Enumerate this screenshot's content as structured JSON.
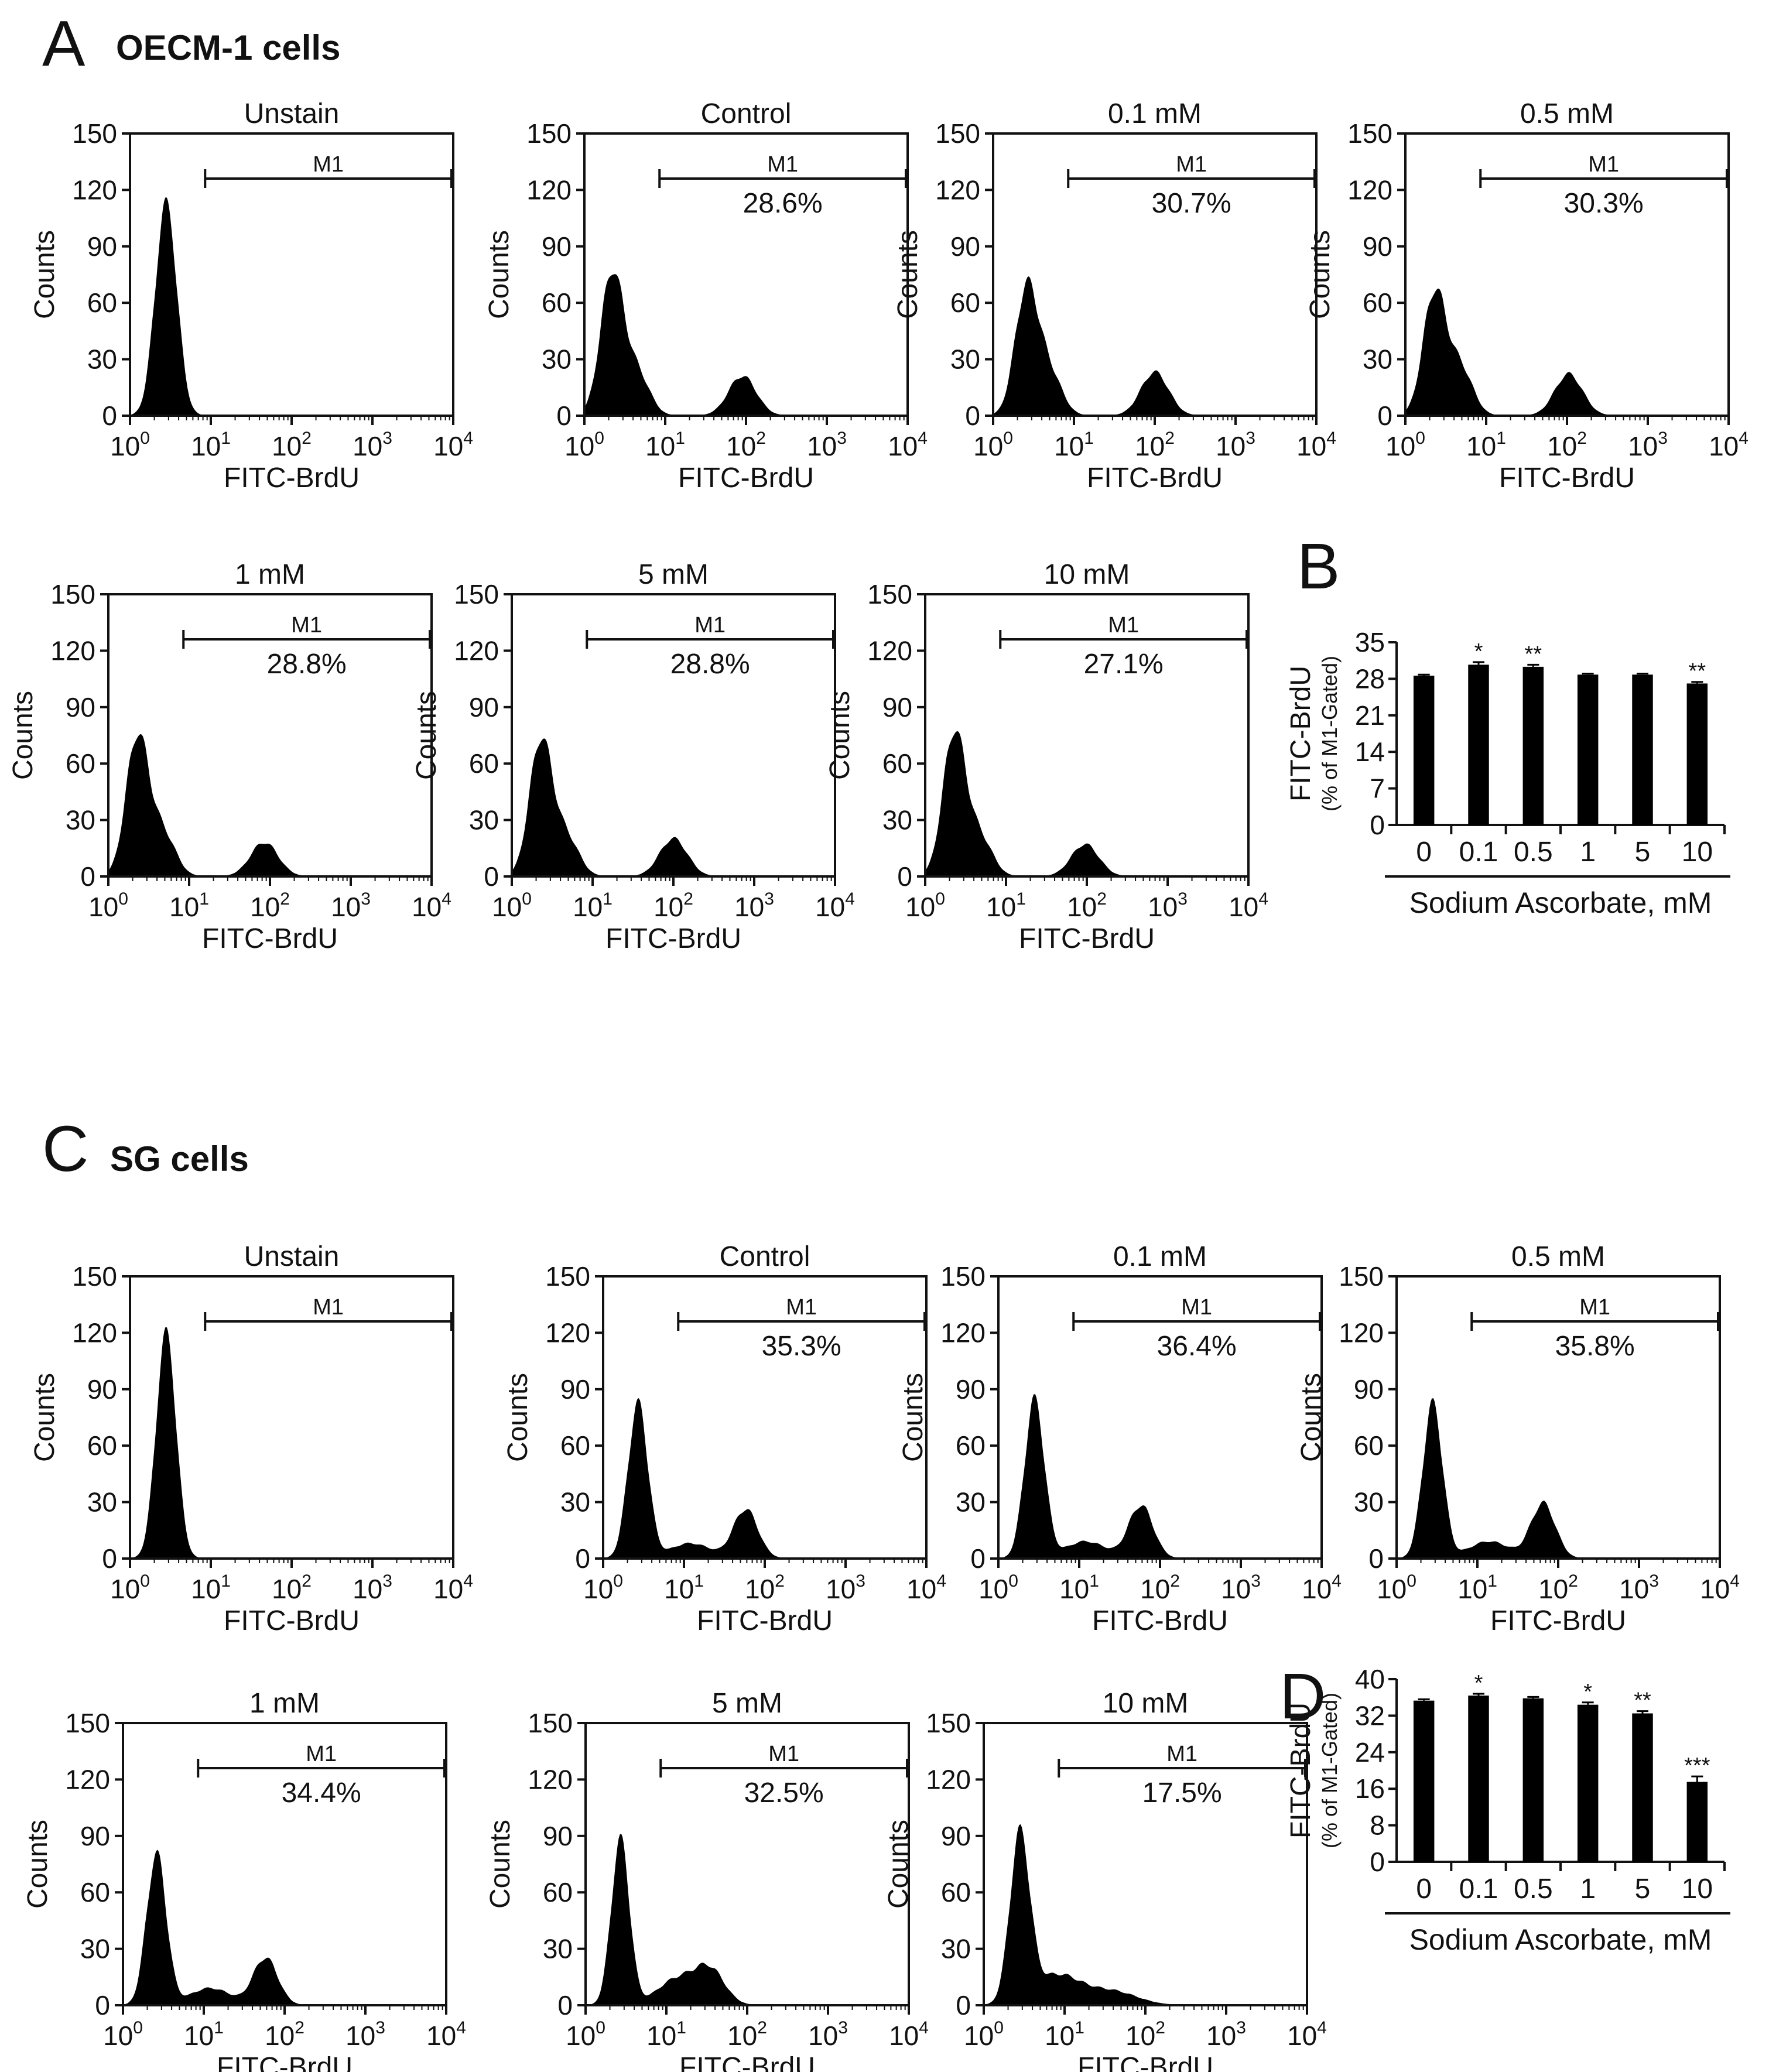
{
  "figure": {
    "panel_A": {
      "letter": "A",
      "title": "OECM-1 cells"
    },
    "panel_B": {
      "letter": "B"
    },
    "panel_C": {
      "letter": "C",
      "title": "SG cells"
    },
    "panel_D": {
      "letter": "D"
    }
  },
  "chart_data": [
    {
      "type": "histogram",
      "panel": "A",
      "title": "Unstain",
      "xlabel": "FITC-BrdU",
      "ylabel": "Counts",
      "xscale": "log",
      "xlim": [
        1,
        10000
      ],
      "ylim": [
        0,
        150
      ],
      "yticks": [
        "0",
        "30",
        "60",
        "90",
        "120",
        "150"
      ],
      "xticks": [
        {
          "base": "10",
          "exp": "0"
        },
        {
          "base": "10",
          "exp": "1"
        },
        {
          "base": "10",
          "exp": "2"
        },
        {
          "base": "10",
          "exp": "3"
        },
        {
          "base": "10",
          "exp": "4"
        }
      ],
      "gate": {
        "label": "M1",
        "from": 8.5,
        "to": 10000,
        "percent": ""
      },
      "peaks": [
        {
          "center": 2.8,
          "height": 113,
          "width": 0.13
        }
      ]
    },
    {
      "type": "histogram",
      "panel": "A",
      "title": "Control",
      "xlabel": "FITC-BrdU",
      "ylabel": "Counts",
      "xscale": "log",
      "xlim": [
        1,
        10000
      ],
      "ylim": [
        0,
        150
      ],
      "yticks": [
        "0",
        "30",
        "60",
        "90",
        "120",
        "150"
      ],
      "xticks": [
        {
          "base": "10",
          "exp": "0"
        },
        {
          "base": "10",
          "exp": "1"
        },
        {
          "base": "10",
          "exp": "2"
        },
        {
          "base": "10",
          "exp": "3"
        },
        {
          "base": "10",
          "exp": "4"
        }
      ],
      "gate": {
        "label": "M1",
        "from": 8.5,
        "to": 10000,
        "percent": "28.6%"
      },
      "peaks": [
        {
          "center": 2.2,
          "height": 75,
          "width": 0.14
        },
        {
          "center": 4.5,
          "height": 22,
          "width": 0.15
        },
        {
          "center": 90,
          "height": 21,
          "width": 0.17
        }
      ]
    },
    {
      "type": "histogram",
      "panel": "A",
      "title": "0.1 mM",
      "xlabel": "FITC-BrdU",
      "ylabel": "Counts",
      "xscale": "log",
      "xlim": [
        1,
        10000
      ],
      "ylim": [
        0,
        150
      ],
      "yticks": [
        "0",
        "30",
        "60",
        "90",
        "120",
        "150"
      ],
      "xticks": [
        {
          "base": "10",
          "exp": "0"
        },
        {
          "base": "10",
          "exp": "1"
        },
        {
          "base": "10",
          "exp": "2"
        },
        {
          "base": "10",
          "exp": "3"
        },
        {
          "base": "10",
          "exp": "4"
        }
      ],
      "gate": {
        "label": "M1",
        "from": 8.5,
        "to": 10000,
        "percent": "30.7%"
      },
      "peaks": [
        {
          "center": 2.6,
          "height": 67,
          "width": 0.14
        },
        {
          "center": 5.0,
          "height": 22,
          "width": 0.15
        },
        {
          "center": 100,
          "height": 23,
          "width": 0.17
        }
      ]
    },
    {
      "type": "histogram",
      "panel": "A",
      "title": "0.5 mM",
      "xlabel": "FITC-BrdU",
      "ylabel": "Counts",
      "xscale": "log",
      "xlim": [
        1,
        10000
      ],
      "ylim": [
        0,
        150
      ],
      "yticks": [
        "0",
        "30",
        "60",
        "90",
        "120",
        "150"
      ],
      "xticks": [
        {
          "base": "10",
          "exp": "0"
        },
        {
          "base": "10",
          "exp": "1"
        },
        {
          "base": "10",
          "exp": "2"
        },
        {
          "base": "10",
          "exp": "3"
        },
        {
          "base": "10",
          "exp": "4"
        }
      ],
      "gate": {
        "label": "M1",
        "from": 8.5,
        "to": 10000,
        "percent": "30.3%"
      },
      "peaks": [
        {
          "center": 2.3,
          "height": 65,
          "width": 0.14
        },
        {
          "center": 4.8,
          "height": 25,
          "width": 0.15
        },
        {
          "center": 105,
          "height": 22,
          "width": 0.17
        }
      ]
    },
    {
      "type": "histogram",
      "panel": "A",
      "title": "1 mM",
      "xlabel": "FITC-BrdU",
      "ylabel": "Counts",
      "xscale": "log",
      "xlim": [
        1,
        10000
      ],
      "ylim": [
        0,
        150
      ],
      "yticks": [
        "0",
        "30",
        "60",
        "90",
        "120",
        "150"
      ],
      "xticks": [
        {
          "base": "10",
          "exp": "0"
        },
        {
          "base": "10",
          "exp": "1"
        },
        {
          "base": "10",
          "exp": "2"
        },
        {
          "base": "10",
          "exp": "3"
        },
        {
          "base": "10",
          "exp": "4"
        }
      ],
      "gate": {
        "label": "M1",
        "from": 8.5,
        "to": 10000,
        "percent": "28.8%"
      },
      "peaks": [
        {
          "center": 2.3,
          "height": 74,
          "width": 0.14
        },
        {
          "center": 4.8,
          "height": 22,
          "width": 0.15
        },
        {
          "center": 85,
          "height": 18,
          "width": 0.17
        }
      ]
    },
    {
      "type": "histogram",
      "panel": "A",
      "title": "5 mM",
      "xlabel": "FITC-BrdU",
      "ylabel": "Counts",
      "xscale": "log",
      "xlim": [
        1,
        10000
      ],
      "ylim": [
        0,
        150
      ],
      "yticks": [
        "0",
        "30",
        "60",
        "90",
        "120",
        "150"
      ],
      "xticks": [
        {
          "base": "10",
          "exp": "0"
        },
        {
          "base": "10",
          "exp": "1"
        },
        {
          "base": "10",
          "exp": "2"
        },
        {
          "base": "10",
          "exp": "3"
        },
        {
          "base": "10",
          "exp": "4"
        }
      ],
      "gate": {
        "label": "M1",
        "from": 8.5,
        "to": 10000,
        "percent": "28.8%"
      },
      "peaks": [
        {
          "center": 2.3,
          "height": 72,
          "width": 0.14
        },
        {
          "center": 4.8,
          "height": 20,
          "width": 0.15
        },
        {
          "center": 100,
          "height": 20,
          "width": 0.17
        }
      ]
    },
    {
      "type": "histogram",
      "panel": "A",
      "title": "10 mM",
      "xlabel": "FITC-BrdU",
      "ylabel": "Counts",
      "xscale": "log",
      "xlim": [
        1,
        10000
      ],
      "ylim": [
        0,
        150
      ],
      "yticks": [
        "0",
        "30",
        "60",
        "90",
        "120",
        "150"
      ],
      "xticks": [
        {
          "base": "10",
          "exp": "0"
        },
        {
          "base": "10",
          "exp": "1"
        },
        {
          "base": "10",
          "exp": "2"
        },
        {
          "base": "10",
          "exp": "3"
        },
        {
          "base": "10",
          "exp": "4"
        }
      ],
      "gate": {
        "label": "M1",
        "from": 8.5,
        "to": 10000,
        "percent": "27.1%"
      },
      "peaks": [
        {
          "center": 2.3,
          "height": 76,
          "width": 0.14
        },
        {
          "center": 4.8,
          "height": 20,
          "width": 0.15
        },
        {
          "center": 95,
          "height": 17,
          "width": 0.17
        }
      ]
    },
    {
      "type": "bar",
      "panel": "B",
      "ylabel": "FITC-BrdU",
      "ylabel2": "(% of M1-Gated)",
      "xlabel": "Sodium Ascorbate, mM",
      "categories": [
        "0",
        "0.1",
        "0.5",
        "1",
        "5",
        "10"
      ],
      "values": [
        28.6,
        30.7,
        30.3,
        28.8,
        28.8,
        27.1
      ],
      "errors": [
        0.2,
        0.5,
        0.4,
        0.2,
        0.2,
        0.3
      ],
      "significance": [
        "",
        "*",
        "**",
        "",
        "",
        "**"
      ],
      "ylim": [
        0,
        35
      ],
      "yticks": [
        "0",
        "7",
        "14",
        "21",
        "28",
        "35"
      ]
    },
    {
      "type": "histogram",
      "panel": "C",
      "title": "Unstain",
      "xlabel": "FITC-BrdU",
      "ylabel": "Counts",
      "xscale": "log",
      "xlim": [
        1,
        10000
      ],
      "ylim": [
        0,
        150
      ],
      "yticks": [
        "0",
        "30",
        "60",
        "90",
        "120",
        "150"
      ],
      "xticks": [
        {
          "base": "10",
          "exp": "0"
        },
        {
          "base": "10",
          "exp": "1"
        },
        {
          "base": "10",
          "exp": "2"
        },
        {
          "base": "10",
          "exp": "3"
        },
        {
          "base": "10",
          "exp": "4"
        }
      ],
      "gate": {
        "label": "M1",
        "from": 8.5,
        "to": 10000,
        "percent": ""
      },
      "peaks": [
        {
          "center": 2.8,
          "height": 120,
          "width": 0.12
        }
      ]
    },
    {
      "type": "histogram",
      "panel": "C",
      "title": "Control",
      "xlabel": "FITC-BrdU",
      "ylabel": "Counts",
      "xscale": "log",
      "xlim": [
        1,
        10000
      ],
      "ylim": [
        0,
        150
      ],
      "yticks": [
        "0",
        "30",
        "60",
        "90",
        "120",
        "150"
      ],
      "xticks": [
        {
          "base": "10",
          "exp": "0"
        },
        {
          "base": "10",
          "exp": "1"
        },
        {
          "base": "10",
          "exp": "2"
        },
        {
          "base": "10",
          "exp": "3"
        },
        {
          "base": "10",
          "exp": "4"
        }
      ],
      "gate": {
        "label": "M1",
        "from": 8.5,
        "to": 10000,
        "percent": "35.3%"
      },
      "peaks": [
        {
          "center": 2.7,
          "height": 82,
          "width": 0.12
        },
        {
          "center": 12,
          "height": 8,
          "width": 0.25
        },
        {
          "center": 58,
          "height": 26,
          "width": 0.15
        }
      ]
    },
    {
      "type": "histogram",
      "panel": "C",
      "title": "0.1 mM",
      "xlabel": "FITC-BrdU",
      "ylabel": "Counts",
      "xscale": "log",
      "xlim": [
        1,
        10000
      ],
      "ylim": [
        0,
        150
      ],
      "yticks": [
        "0",
        "30",
        "60",
        "90",
        "120",
        "150"
      ],
      "xticks": [
        {
          "base": "10",
          "exp": "0"
        },
        {
          "base": "10",
          "exp": "1"
        },
        {
          "base": "10",
          "exp": "2"
        },
        {
          "base": "10",
          "exp": "3"
        },
        {
          "base": "10",
          "exp": "4"
        }
      ],
      "gate": {
        "label": "M1",
        "from": 8.5,
        "to": 10000,
        "percent": "36.4%"
      },
      "peaks": [
        {
          "center": 2.8,
          "height": 84,
          "width": 0.12
        },
        {
          "center": 12,
          "height": 9,
          "width": 0.25
        },
        {
          "center": 58,
          "height": 28,
          "width": 0.15
        }
      ]
    },
    {
      "type": "histogram",
      "panel": "C",
      "title": "0.5 mM",
      "xlabel": "FITC-BrdU",
      "ylabel": "Counts",
      "xscale": "log",
      "xlim": [
        1,
        10000
      ],
      "ylim": [
        0,
        150
      ],
      "yticks": [
        "0",
        "30",
        "60",
        "90",
        "120",
        "150"
      ],
      "xticks": [
        {
          "base": "10",
          "exp": "0"
        },
        {
          "base": "10",
          "exp": "1"
        },
        {
          "base": "10",
          "exp": "2"
        },
        {
          "base": "10",
          "exp": "3"
        },
        {
          "base": "10",
          "exp": "4"
        }
      ],
      "gate": {
        "label": "M1",
        "from": 8.5,
        "to": 10000,
        "percent": "35.8%"
      },
      "peaks": [
        {
          "center": 2.8,
          "height": 82,
          "width": 0.12
        },
        {
          "center": 14,
          "height": 9,
          "width": 0.25
        },
        {
          "center": 65,
          "height": 29,
          "width": 0.15
        }
      ]
    },
    {
      "type": "histogram",
      "panel": "C",
      "title": "1 mM",
      "xlabel": "FITC-BrdU",
      "ylabel": "Counts",
      "xscale": "log",
      "xlim": [
        1,
        10000
      ],
      "ylim": [
        0,
        150
      ],
      "yticks": [
        "0",
        "30",
        "60",
        "90",
        "120",
        "150"
      ],
      "xticks": [
        {
          "base": "10",
          "exp": "0"
        },
        {
          "base": "10",
          "exp": "1"
        },
        {
          "base": "10",
          "exp": "2"
        },
        {
          "base": "10",
          "exp": "3"
        },
        {
          "base": "10",
          "exp": "4"
        }
      ],
      "gate": {
        "label": "M1",
        "from": 8.5,
        "to": 10000,
        "percent": "34.4%"
      },
      "peaks": [
        {
          "center": 2.6,
          "height": 80,
          "width": 0.12
        },
        {
          "center": 12,
          "height": 9,
          "width": 0.25
        },
        {
          "center": 58,
          "height": 25,
          "width": 0.15
        }
      ]
    },
    {
      "type": "histogram",
      "panel": "C",
      "title": "5 mM",
      "xlabel": "FITC-BrdU",
      "ylabel": "Counts",
      "xscale": "log",
      "xlim": [
        1,
        10000
      ],
      "ylim": [
        0,
        150
      ],
      "yticks": [
        "0",
        "30",
        "60",
        "90",
        "120",
        "150"
      ],
      "xticks": [
        {
          "base": "10",
          "exp": "0"
        },
        {
          "base": "10",
          "exp": "1"
        },
        {
          "base": "10",
          "exp": "2"
        },
        {
          "base": "10",
          "exp": "3"
        },
        {
          "base": "10",
          "exp": "4"
        }
      ],
      "gate": {
        "label": "M1",
        "from": 8.5,
        "to": 10000,
        "percent": "32.5%"
      },
      "peaks": [
        {
          "center": 2.7,
          "height": 88,
          "width": 0.11
        },
        {
          "center": 14,
          "height": 14,
          "width": 0.25
        },
        {
          "center": 35,
          "height": 17,
          "width": 0.18
        }
      ]
    },
    {
      "type": "histogram",
      "panel": "C",
      "title": "10 mM",
      "xlabel": "FITC-BrdU",
      "ylabel": "Counts",
      "xscale": "log",
      "xlim": [
        1,
        10000
      ],
      "ylim": [
        0,
        150
      ],
      "yticks": [
        "0",
        "30",
        "60",
        "90",
        "120",
        "150"
      ],
      "xticks": [
        {
          "base": "10",
          "exp": "0"
        },
        {
          "base": "10",
          "exp": "1"
        },
        {
          "base": "10",
          "exp": "2"
        },
        {
          "base": "10",
          "exp": "3"
        },
        {
          "base": "10",
          "exp": "4"
        }
      ],
      "gate": {
        "label": "M1",
        "from": 8.5,
        "to": 10000,
        "percent": "17.5%"
      },
      "peaks": [
        {
          "center": 2.8,
          "height": 88,
          "width": 0.12
        },
        {
          "center": 8,
          "height": 16,
          "width": 0.3
        },
        {
          "center": 40,
          "height": 7,
          "width": 0.3
        }
      ]
    },
    {
      "type": "bar",
      "panel": "D",
      "ylabel": "FITC-BrdU",
      "ylabel2": "(% of M1-Gated)",
      "xlabel": "Sodium Ascorbate, mM",
      "categories": [
        "0",
        "0.1",
        "0.5",
        "1",
        "5",
        "10"
      ],
      "values": [
        35.3,
        36.4,
        35.8,
        34.4,
        32.5,
        17.5
      ],
      "errors": [
        0.3,
        0.4,
        0.3,
        0.5,
        0.5,
        1.2
      ],
      "significance": [
        "",
        "*",
        "",
        "*",
        "**",
        "***"
      ],
      "ylim": [
        0,
        40
      ],
      "yticks": [
        "0",
        "8",
        "16",
        "24",
        "32",
        "40"
      ]
    }
  ]
}
